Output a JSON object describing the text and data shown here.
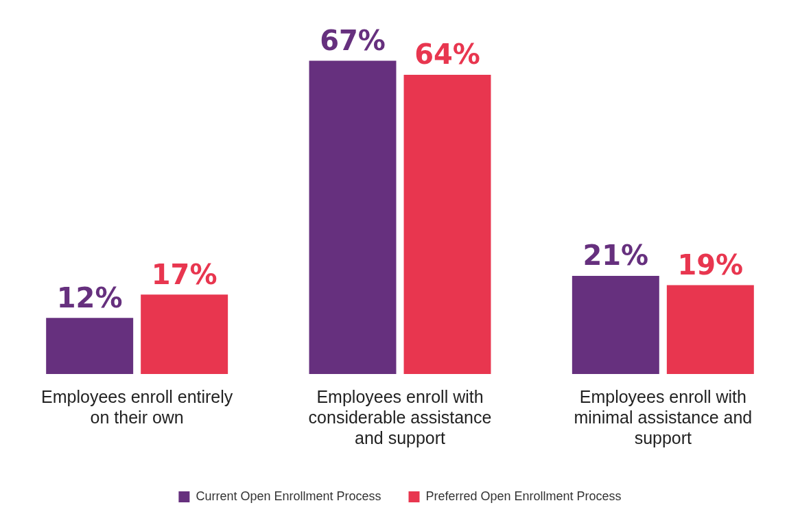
{
  "chart_data": {
    "type": "bar",
    "categories": [
      "Employees enroll entirely on their own",
      "Employees enroll with considerable assistance and support",
      "Employees enroll with minimal assistance and support"
    ],
    "series": [
      {
        "name": "Current Open Enrollment Process",
        "color": "#66307e",
        "values": [
          12,
          67,
          21
        ],
        "value_labels": [
          "12%",
          "67%",
          "21%"
        ]
      },
      {
        "name": "Preferred Open Enrollment Process",
        "color": "#e8364f",
        "values": [
          17,
          64,
          19
        ],
        "value_labels": [
          "17%",
          "64%",
          "19%"
        ]
      }
    ],
    "legend": "bottom",
    "grid": false
  }
}
